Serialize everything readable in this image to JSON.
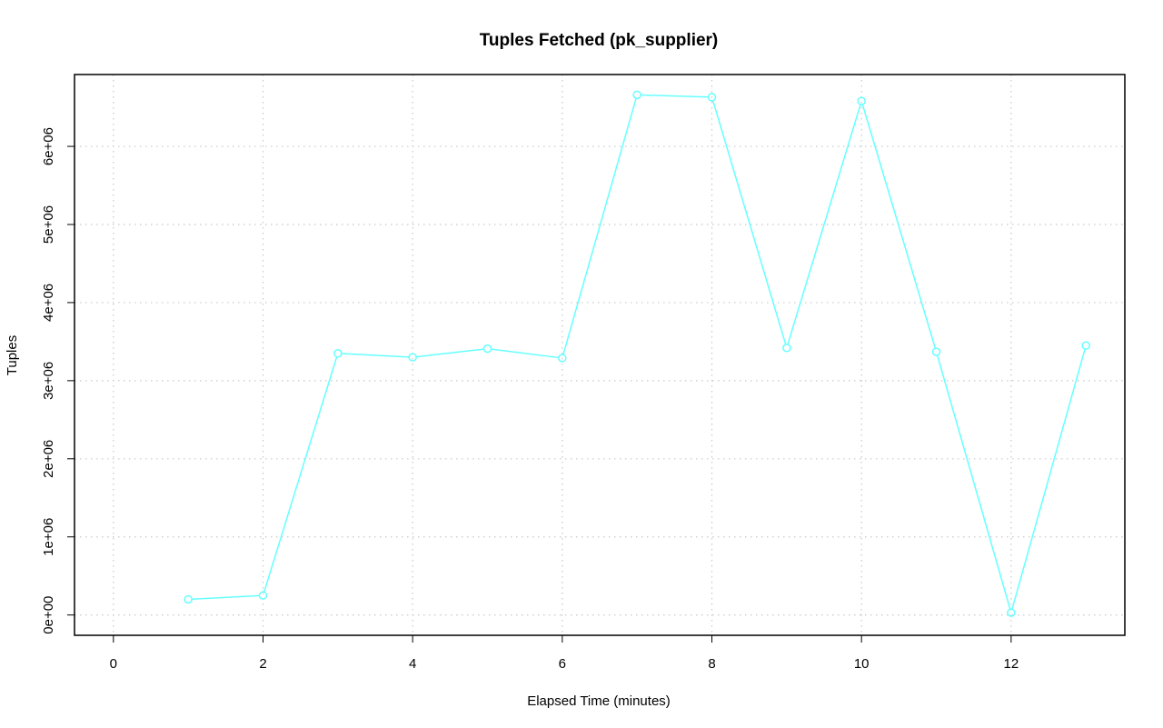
{
  "chart_data": {
    "type": "line",
    "title": "Tuples Fetched (pk_supplier)",
    "xlabel": "Elapsed Time (minutes)",
    "ylabel": "Tuples",
    "xlim": [
      -0.52,
      13.52
    ],
    "ylim": [
      -260000,
      6920000
    ],
    "x_ticks": [
      0,
      2,
      4,
      6,
      8,
      10,
      12
    ],
    "x_tick_labels": [
      "0",
      "2",
      "4",
      "6",
      "8",
      "10",
      "12"
    ],
    "y_ticks": [
      0,
      1000000,
      2000000,
      3000000,
      4000000,
      5000000,
      6000000
    ],
    "y_tick_labels": [
      "0e+00",
      "1e+06",
      "2e+06",
      "3e+06",
      "4e+06",
      "5e+06",
      "6e+06"
    ],
    "grid": true,
    "legend": "none",
    "series": [
      {
        "color": "#66ffff",
        "marker": "circle",
        "x": [
          1,
          2,
          3,
          4,
          5,
          6,
          7,
          8,
          9,
          10,
          11,
          12,
          13
        ],
        "y": [
          200000,
          250000,
          3350000,
          3300000,
          3410000,
          3290000,
          6660000,
          6630000,
          3420000,
          6580000,
          3370000,
          30000,
          3450000
        ]
      }
    ]
  }
}
